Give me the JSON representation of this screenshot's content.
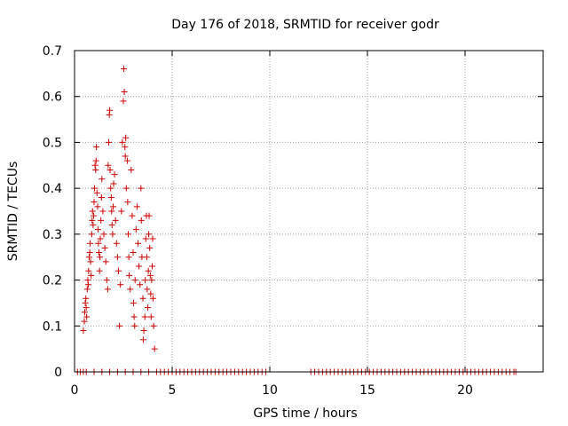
{
  "chart_data": {
    "type": "scatter",
    "title": "Day 176 of 2018, SRMTID for receiver godr",
    "xlabel": "GPS time / hours",
    "ylabel": "SRMTID / TECUs",
    "xlim": [
      0,
      24
    ],
    "ylim": [
      0,
      0.7
    ],
    "x_ticks": [
      0,
      5,
      10,
      15,
      20
    ],
    "x_tick_labels": [
      "0",
      "5",
      "10",
      "15",
      "20"
    ],
    "y_ticks": [
      0,
      0.1,
      0.2,
      0.3,
      0.4,
      0.5,
      0.6,
      0.7
    ],
    "y_tick_labels": [
      "0",
      "0.1",
      "0.2",
      "0.3",
      "0.4",
      "0.5",
      "0.6",
      "0.7"
    ],
    "grid": true,
    "marker": "+",
    "series": [
      {
        "name": "SRMTID",
        "color": "#cc0000",
        "points": [
          [
            0.45,
            0.09
          ],
          [
            0.5,
            0.11
          ],
          [
            0.52,
            0.13
          ],
          [
            0.55,
            0.15
          ],
          [
            0.58,
            0.16
          ],
          [
            0.6,
            0.14
          ],
          [
            0.62,
            0.12
          ],
          [
            0.65,
            0.18
          ],
          [
            0.68,
            0.2
          ],
          [
            0.7,
            0.19
          ],
          [
            0.72,
            0.22
          ],
          [
            0.75,
            0.25
          ],
          [
            0.78,
            0.26
          ],
          [
            0.8,
            0.28
          ],
          [
            0.82,
            0.24
          ],
          [
            0.85,
            0.21
          ],
          [
            0.88,
            0.3
          ],
          [
            0.9,
            0.33
          ],
          [
            0.92,
            0.35
          ],
          [
            0.95,
            0.32
          ],
          [
            0.98,
            0.34
          ],
          [
            1.0,
            0.37
          ],
          [
            1.02,
            0.4
          ],
          [
            1.05,
            0.45
          ],
          [
            1.08,
            0.44
          ],
          [
            1.1,
            0.46
          ],
          [
            1.12,
            0.49
          ],
          [
            1.15,
            0.39
          ],
          [
            1.18,
            0.36
          ],
          [
            1.2,
            0.31
          ],
          [
            1.22,
            0.28
          ],
          [
            1.25,
            0.26
          ],
          [
            1.28,
            0.22
          ],
          [
            1.3,
            0.25
          ],
          [
            1.32,
            0.29
          ],
          [
            1.35,
            0.33
          ],
          [
            1.38,
            0.38
          ],
          [
            1.4,
            0.42
          ],
          [
            1.45,
            0.35
          ],
          [
            1.5,
            0.3
          ],
          [
            1.55,
            0.27
          ],
          [
            1.6,
            0.24
          ],
          [
            1.65,
            0.2
          ],
          [
            1.7,
            0.18
          ],
          [
            1.72,
            0.45
          ],
          [
            1.75,
            0.5
          ],
          [
            1.78,
            0.56
          ],
          [
            1.8,
            0.57
          ],
          [
            1.82,
            0.44
          ],
          [
            1.85,
            0.4
          ],
          [
            1.88,
            0.38
          ],
          [
            1.9,
            0.35
          ],
          [
            1.92,
            0.32
          ],
          [
            1.95,
            0.3
          ],
          [
            1.98,
            0.36
          ],
          [
            2.0,
            0.41
          ],
          [
            2.05,
            0.43
          ],
          [
            2.1,
            0.33
          ],
          [
            2.15,
            0.28
          ],
          [
            2.2,
            0.25
          ],
          [
            2.25,
            0.22
          ],
          [
            2.3,
            0.1
          ],
          [
            2.35,
            0.19
          ],
          [
            2.4,
            0.35
          ],
          [
            2.45,
            0.5
          ],
          [
            2.5,
            0.59
          ],
          [
            2.52,
            0.66
          ],
          [
            2.55,
            0.61
          ],
          [
            2.58,
            0.49
          ],
          [
            2.6,
            0.47
          ],
          [
            2.62,
            0.51
          ],
          [
            2.65,
            0.4
          ],
          [
            2.7,
            0.46
          ],
          [
            2.72,
            0.37
          ],
          [
            2.75,
            0.3
          ],
          [
            2.78,
            0.25
          ],
          [
            2.8,
            0.21
          ],
          [
            2.85,
            0.18
          ],
          [
            2.9,
            0.44
          ],
          [
            2.95,
            0.34
          ],
          [
            3.0,
            0.26
          ],
          [
            3.02,
            0.15
          ],
          [
            3.05,
            0.12
          ],
          [
            3.08,
            0.1
          ],
          [
            3.1,
            0.2
          ],
          [
            3.15,
            0.31
          ],
          [
            3.2,
            0.36
          ],
          [
            3.25,
            0.28
          ],
          [
            3.3,
            0.23
          ],
          [
            3.35,
            0.19
          ],
          [
            3.4,
            0.4
          ],
          [
            3.42,
            0.33
          ],
          [
            3.45,
            0.25
          ],
          [
            3.5,
            0.16
          ],
          [
            3.52,
            0.07
          ],
          [
            3.55,
            0.09
          ],
          [
            3.6,
            0.12
          ],
          [
            3.62,
            0.2
          ],
          [
            3.65,
            0.29
          ],
          [
            3.68,
            0.34
          ],
          [
            3.7,
            0.25
          ],
          [
            3.72,
            0.18
          ],
          [
            3.75,
            0.14
          ],
          [
            3.78,
            0.22
          ],
          [
            3.8,
            0.3
          ],
          [
            3.82,
            0.34
          ],
          [
            3.85,
            0.27
          ],
          [
            3.88,
            0.21
          ],
          [
            3.9,
            0.17
          ],
          [
            3.92,
            0.12
          ],
          [
            3.95,
            0.2
          ],
          [
            3.98,
            0.23
          ],
          [
            4.0,
            0.29
          ],
          [
            4.02,
            0.16
          ],
          [
            4.05,
            0.1
          ],
          [
            4.1,
            0.05
          ]
        ],
        "zero_x": [
          0.15,
          0.3,
          0.45,
          0.6,
          1.0,
          1.4,
          1.8,
          2.2,
          2.6,
          3.0,
          3.4,
          3.8,
          4.2,
          4.4,
          4.6,
          4.8,
          5.0,
          5.2,
          5.4,
          5.6,
          5.8,
          6.0,
          6.2,
          6.4,
          6.6,
          6.8,
          7.0,
          7.2,
          7.4,
          7.6,
          7.8,
          8.0,
          8.2,
          8.4,
          8.6,
          8.8,
          9.0,
          9.2,
          9.4,
          9.6,
          9.8,
          12.1,
          12.3,
          12.5,
          12.7,
          12.9,
          13.1,
          13.3,
          13.5,
          13.7,
          13.9,
          14.1,
          14.3,
          14.5,
          14.7,
          14.9,
          15.1,
          15.3,
          15.5,
          15.7,
          15.9,
          16.1,
          16.3,
          16.5,
          16.7,
          16.9,
          17.1,
          17.3,
          17.5,
          17.7,
          17.9,
          18.1,
          18.3,
          18.5,
          18.7,
          18.9,
          19.1,
          19.3,
          19.5,
          19.7,
          19.9,
          20.1,
          20.3,
          20.5,
          20.7,
          20.9,
          21.1,
          21.3,
          21.5,
          21.7,
          21.9,
          22.1,
          22.3,
          22.5,
          22.6
        ]
      }
    ]
  }
}
